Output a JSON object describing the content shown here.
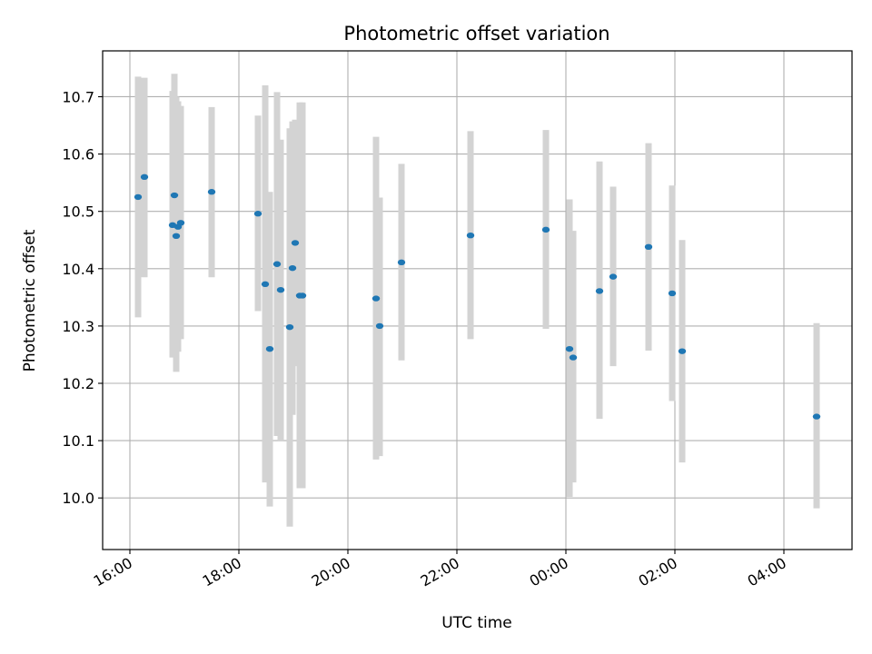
{
  "chart_data": {
    "type": "scatter",
    "title": "Photometric offset variation",
    "xlabel": "UTC time",
    "ylabel": "Photometric offset",
    "x_axis": {
      "kind": "time",
      "range": [
        "2000-01-01T15:30",
        "2000-01-02T05:15"
      ],
      "ticks": [
        {
          "t": "2000-01-01T16:00",
          "label": "16:00"
        },
        {
          "t": "2000-01-01T18:00",
          "label": "18:00"
        },
        {
          "t": "2000-01-01T20:00",
          "label": "20:00"
        },
        {
          "t": "2000-01-01T22:00",
          "label": "22:00"
        },
        {
          "t": "2000-01-02T00:00",
          "label": "00:00"
        },
        {
          "t": "2000-01-02T02:00",
          "label": "02:00"
        },
        {
          "t": "2000-01-02T04:00",
          "label": "04:00"
        }
      ]
    },
    "y_axis": {
      "range": [
        9.91,
        10.78
      ],
      "ticks": [
        10.0,
        10.1,
        10.2,
        10.3,
        10.4,
        10.5,
        10.6,
        10.7
      ],
      "tick_labels": [
        "10.0",
        "10.1",
        "10.2",
        "10.3",
        "10.4",
        "10.5",
        "10.6",
        "10.7"
      ]
    },
    "grid": true,
    "colors": {
      "marker": "#1f77b4",
      "errorbar": "#d3d3d3",
      "grid": "#b0b0b0"
    },
    "points": [
      {
        "t": "2000-01-01T16:09",
        "y": 10.525,
        "lo": 10.315,
        "hi": 10.735
      },
      {
        "t": "2000-01-01T16:16",
        "y": 10.56,
        "lo": 10.385,
        "hi": 10.733
      },
      {
        "t": "2000-01-01T16:47",
        "y": 10.476,
        "lo": 10.245,
        "hi": 10.71
      },
      {
        "t": "2000-01-01T16:49",
        "y": 10.528,
        "lo": 10.283,
        "hi": 10.74
      },
      {
        "t": "2000-01-01T16:51",
        "y": 10.457,
        "lo": 10.22,
        "hi": 10.7
      },
      {
        "t": "2000-01-01T16:53",
        "y": 10.473,
        "lo": 10.255,
        "hi": 10.692
      },
      {
        "t": "2000-01-01T16:56",
        "y": 10.48,
        "lo": 10.277,
        "hi": 10.684
      },
      {
        "t": "2000-01-01T17:30",
        "y": 10.534,
        "lo": 10.385,
        "hi": 10.682
      },
      {
        "t": "2000-01-01T18:21",
        "y": 10.496,
        "lo": 10.326,
        "hi": 10.667
      },
      {
        "t": "2000-01-01T18:29",
        "y": 10.373,
        "lo": 10.027,
        "hi": 10.72
      },
      {
        "t": "2000-01-01T18:34",
        "y": 10.26,
        "lo": 9.985,
        "hi": 10.534
      },
      {
        "t": "2000-01-01T18:42",
        "y": 10.408,
        "lo": 10.108,
        "hi": 10.708
      },
      {
        "t": "2000-01-01T18:46",
        "y": 10.363,
        "lo": 10.1,
        "hi": 10.625
      },
      {
        "t": "2000-01-01T18:56",
        "y": 10.298,
        "lo": 9.95,
        "hi": 10.645
      },
      {
        "t": "2000-01-01T18:59",
        "y": 10.401,
        "lo": 10.145,
        "hi": 10.657
      },
      {
        "t": "2000-01-01T19:02",
        "y": 10.445,
        "lo": 10.23,
        "hi": 10.66
      },
      {
        "t": "2000-01-01T19:07",
        "y": 10.353,
        "lo": 10.017,
        "hi": 10.69
      },
      {
        "t": "2000-01-01T19:10",
        "y": 10.353,
        "lo": 10.017,
        "hi": 10.69
      },
      {
        "t": "2000-01-01T20:31",
        "y": 10.348,
        "lo": 10.067,
        "hi": 10.63
      },
      {
        "t": "2000-01-01T20:35",
        "y": 10.3,
        "lo": 10.073,
        "hi": 10.524
      },
      {
        "t": "2000-01-01T20:59",
        "y": 10.411,
        "lo": 10.24,
        "hi": 10.583
      },
      {
        "t": "2000-01-01T22:15",
        "y": 10.458,
        "lo": 10.277,
        "hi": 10.64
      },
      {
        "t": "2000-01-01T23:38",
        "y": 10.468,
        "lo": 10.295,
        "hi": 10.642
      },
      {
        "t": "2000-01-02T00:04",
        "y": 10.26,
        "lo": 10.002,
        "hi": 10.521
      },
      {
        "t": "2000-01-02T00:08",
        "y": 10.245,
        "lo": 10.027,
        "hi": 10.466
      },
      {
        "t": "2000-01-02T00:37",
        "y": 10.361,
        "lo": 10.138,
        "hi": 10.587
      },
      {
        "t": "2000-01-02T00:52",
        "y": 10.386,
        "lo": 10.23,
        "hi": 10.543
      },
      {
        "t": "2000-01-02T01:31",
        "y": 10.438,
        "lo": 10.257,
        "hi": 10.619
      },
      {
        "t": "2000-01-02T01:57",
        "y": 10.357,
        "lo": 10.169,
        "hi": 10.545
      },
      {
        "t": "2000-01-02T02:08",
        "y": 10.256,
        "lo": 10.062,
        "hi": 10.45
      },
      {
        "t": "2000-01-02T04:36",
        "y": 10.142,
        "lo": 9.982,
        "hi": 10.305
      }
    ]
  }
}
